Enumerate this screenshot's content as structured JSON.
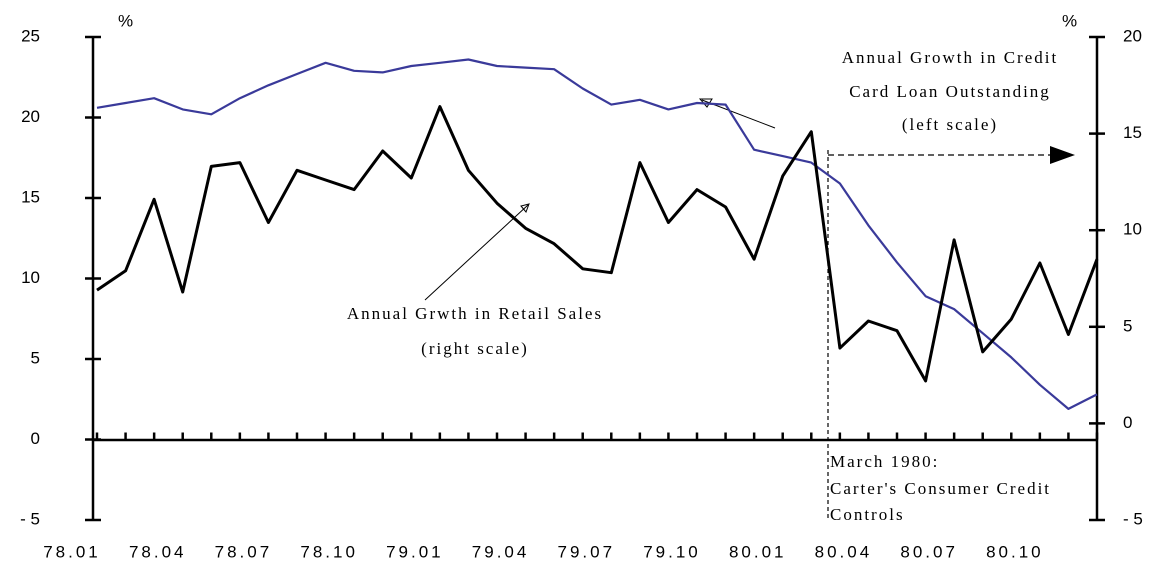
{
  "chart_data": {
    "type": "line",
    "categories": [
      "78.01",
      null,
      null,
      "78.04",
      null,
      null,
      "78.07",
      null,
      null,
      "78.10",
      null,
      null,
      "79.01",
      null,
      null,
      "79.04",
      null,
      null,
      "79.07",
      null,
      null,
      "79.10",
      null,
      null,
      "80.01",
      null,
      null,
      "80.04",
      null,
      null,
      "80.07",
      null,
      null,
      "80.10",
      null,
      null
    ],
    "series": [
      {
        "color": "#3a3a9a",
        "values": [
          20.6,
          20.9,
          21.2,
          20.5,
          20.2,
          21.2,
          22.0,
          22.7,
          23.4,
          22.9,
          22.8,
          23.2,
          23.4,
          23.6,
          23.2,
          23.1,
          23.0,
          21.8,
          20.8,
          21.1,
          20.5,
          20.9,
          20.8,
          18.0,
          17.6,
          17.2,
          15.9,
          13.3,
          11.0,
          8.9,
          8.1,
          6.6,
          5.1,
          3.4,
          1.9,
          2.8
        ]
      },
      {
        "color": "#000000",
        "axis": "y2",
        "values": [
          6.9,
          7.9,
          11.6,
          6.8,
          13.3,
          13.5,
          10.4,
          13.1,
          12.6,
          12.1,
          14.1,
          12.7,
          16.4,
          13.1,
          11.4,
          10.1,
          9.3,
          8.0,
          7.8,
          13.5,
          10.4,
          12.1,
          11.2,
          8.5,
          12.8,
          15.1,
          3.9,
          5.3,
          4.8,
          2.2,
          9.5,
          3.7,
          5.4,
          8.3,
          4.6,
          8.5
        ]
      }
    ],
    "ylim": [
      -5,
      25
    ],
    "yticks": [
      {
        "value": -5,
        "label": "- 5"
      },
      0,
      5,
      10,
      15,
      20,
      25
    ],
    "y2lim": [
      -5,
      20
    ],
    "y2ticks": [
      {
        "value": -5,
        "label": "- 5"
      },
      0,
      5,
      10,
      15,
      20
    ],
    "ylabel": "%",
    "y2label": "%",
    "annotations": {
      "credit": [
        "Annual Growth in Credit",
        "Card Loan Outstanding",
        "(left scale)"
      ],
      "retail": [
        "Annual Grwth in Retail Sales",
        "(right scale)"
      ],
      "march": [
        "March 1980:",
        "Carter's Consumer Credit",
        "Controls"
      ]
    }
  }
}
